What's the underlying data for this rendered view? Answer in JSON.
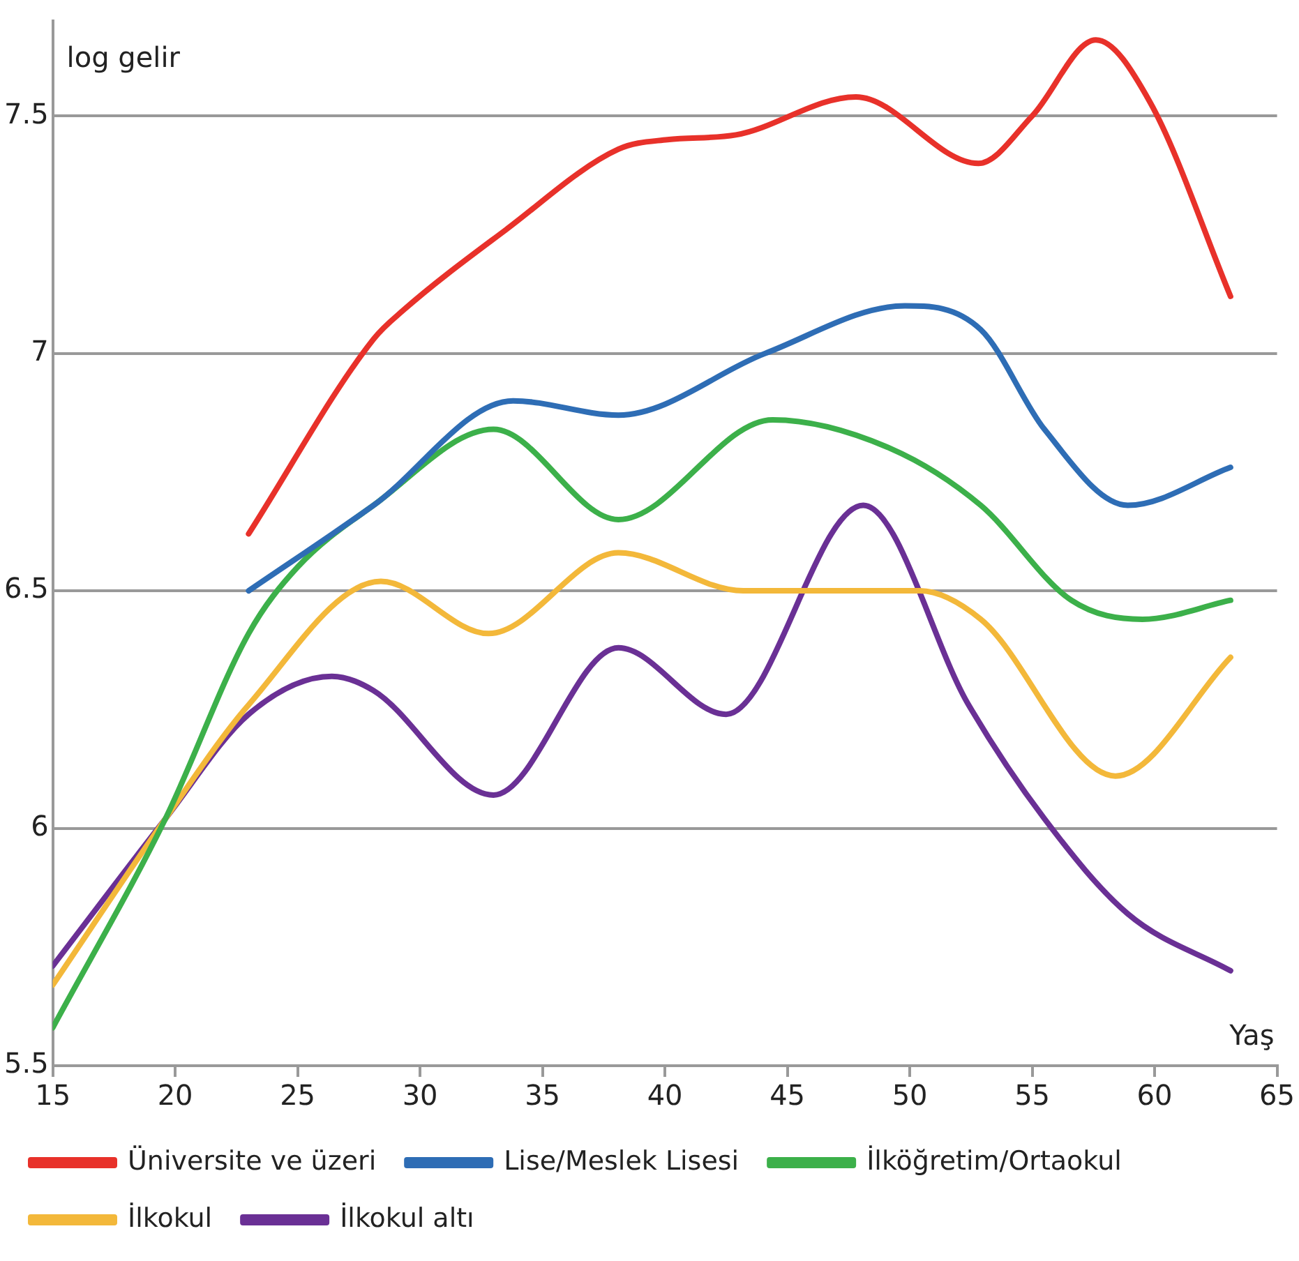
{
  "chart_data": {
    "type": "line",
    "ylabel": "log gelir",
    "xlabel": "Yaş",
    "xlim": [
      15,
      65
    ],
    "xticks": [
      15,
      20,
      25,
      30,
      35,
      40,
      45,
      50,
      55,
      60,
      65
    ],
    "ylim": [
      5.5,
      7.7
    ],
    "yticks": [
      5.5,
      6,
      6.5,
      7,
      7.5
    ],
    "grid": "y",
    "legend": "bottom",
    "marker": "none",
    "line_style": "solid",
    "series": [
      {
        "name": "Üniversite ve üzeri",
        "color": "#e8312a",
        "x": [
          23,
          28.1,
          29.3,
          33.5,
          38.1,
          40.1,
          42.9,
          47.8,
          52.8,
          55,
          57.6,
          59.8,
          63.1
        ],
        "values": [
          6.62,
          7.03,
          7.09,
          7.26,
          7.43,
          7.45,
          7.46,
          7.54,
          7.4,
          7.5,
          7.66,
          7.53,
          7.12
        ]
      },
      {
        "name": "Lise/Meslek Lisesi",
        "color": "#2e6db5",
        "x": [
          23,
          28.1,
          33.8,
          38.1,
          44.1,
          49.8,
          52.9,
          55.5,
          58.9,
          63.1
        ],
        "values": [
          6.5,
          6.68,
          6.9,
          6.87,
          7.0,
          7.1,
          7.05,
          6.84,
          6.68,
          6.76
        ]
      },
      {
        "name": "İlköğretim/Ortaokul",
        "color": "#3cb04a",
        "x": [
          15,
          19.6,
          23,
          25,
          28.1,
          33,
          38.1,
          44.4,
          49.2,
          52.9,
          56.6,
          59.5,
          63.1
        ],
        "values": [
          5.58,
          6.02,
          6.41,
          6.55,
          6.68,
          6.84,
          6.65,
          6.86,
          6.8,
          6.68,
          6.48,
          6.44,
          6.48
        ]
      },
      {
        "name": "İlkokul",
        "color": "#f3b83a",
        "x": [
          15,
          19.6,
          23,
          28.4,
          32.8,
          38.1,
          43.2,
          50.4,
          52.9,
          58.4,
          63.1
        ],
        "values": [
          5.67,
          6.02,
          6.26,
          6.52,
          6.41,
          6.58,
          6.5,
          6.5,
          6.44,
          6.11,
          6.36
        ]
      },
      {
        "name": "İlkokul altı",
        "color": "#6a3095",
        "x": [
          15,
          19.6,
          23,
          26.4,
          28.1,
          33,
          38.1,
          42.5,
          48.1,
          52.4,
          55.5,
          58.9,
          63.1
        ],
        "values": [
          5.71,
          6.02,
          6.24,
          6.32,
          6.29,
          6.07,
          6.38,
          6.24,
          6.68,
          6.26,
          6.02,
          5.82,
          5.7
        ]
      }
    ]
  }
}
